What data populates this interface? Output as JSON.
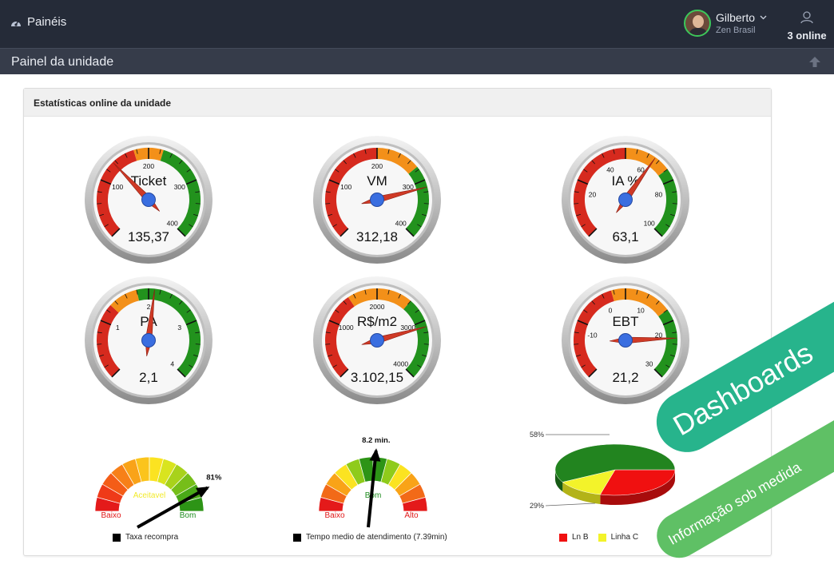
{
  "topbar": {
    "brand_label": "Painéis",
    "user": {
      "name": "Gilberto",
      "company": "Zen Brasil"
    },
    "online_label": "3 online"
  },
  "subbar": {
    "title": "Painel da unidade"
  },
  "panel": {
    "title": "Estatísticas online da unidade"
  },
  "gauges": [
    {
      "id": "ticket",
      "label": "Ticket",
      "display": "135,37",
      "value": 135.37,
      "min": 0,
      "max": 400,
      "ticks": [
        {
          "v": 100,
          "t": "100"
        },
        {
          "v": 200,
          "t": "200"
        },
        {
          "v": 300,
          "t": "300"
        },
        {
          "v": 400,
          "t": "400"
        }
      ],
      "bands": [
        {
          "from": 0,
          "to": 175,
          "color": "#d62a1e"
        },
        {
          "from": 175,
          "to": 225,
          "color": "#f39019"
        },
        {
          "from": 225,
          "to": 400,
          "color": "#22921d"
        }
      ]
    },
    {
      "id": "vm",
      "label": "VM",
      "display": "312,18",
      "value": 312.18,
      "min": 0,
      "max": 400,
      "ticks": [
        {
          "v": 100,
          "t": "100"
        },
        {
          "v": 200,
          "t": "200"
        },
        {
          "v": 300,
          "t": "300"
        },
        {
          "v": 400,
          "t": "400"
        }
      ],
      "bands": [
        {
          "from": 0,
          "to": 200,
          "color": "#d62a1e"
        },
        {
          "from": 200,
          "to": 275,
          "color": "#f39019"
        },
        {
          "from": 275,
          "to": 400,
          "color": "#22921d"
        }
      ]
    },
    {
      "id": "ia",
      "label": "IA %",
      "display": "63,1",
      "value": 63.1,
      "min": 0,
      "max": 100,
      "ticks": [
        {
          "v": 20,
          "t": "20"
        },
        {
          "v": 40,
          "t": "40"
        },
        {
          "v": 60,
          "t": "60"
        },
        {
          "v": 80,
          "t": "80"
        },
        {
          "v": 100,
          "t": "100"
        }
      ],
      "bands": [
        {
          "from": 0,
          "to": 50,
          "color": "#d62a1e"
        },
        {
          "from": 50,
          "to": 70,
          "color": "#f39019"
        },
        {
          "from": 70,
          "to": 100,
          "color": "#22921d"
        }
      ]
    },
    {
      "id": "pa",
      "label": "PA",
      "display": "2,1",
      "value": 2.1,
      "min": 0,
      "max": 4,
      "ticks": [
        {
          "v": 1,
          "t": "1"
        },
        {
          "v": 2,
          "t": "2"
        },
        {
          "v": 3,
          "t": "3"
        },
        {
          "v": 4,
          "t": "4"
        }
      ],
      "bands": [
        {
          "from": 0,
          "to": 1.3,
          "color": "#d62a1e"
        },
        {
          "from": 1.3,
          "to": 1.8,
          "color": "#f39019"
        },
        {
          "from": 1.8,
          "to": 4,
          "color": "#22921d"
        }
      ]
    },
    {
      "id": "rsm2",
      "label": "R$/m2",
      "display": "3.102,15",
      "value": 3102.15,
      "min": 0,
      "max": 4000,
      "ticks": [
        {
          "v": 1000,
          "t": "1000"
        },
        {
          "v": 2000,
          "t": "2000"
        },
        {
          "v": 3000,
          "t": "3000"
        },
        {
          "v": 4000,
          "t": "4000"
        }
      ],
      "bands": [
        {
          "from": 0,
          "to": 1500,
          "color": "#d62a1e"
        },
        {
          "from": 1500,
          "to": 2600,
          "color": "#f39019"
        },
        {
          "from": 2600,
          "to": 4000,
          "color": "#22921d"
        }
      ]
    },
    {
      "id": "ebt",
      "label": "EBT",
      "display": "21,2",
      "value": 21.2,
      "min": -20,
      "max": 30,
      "ticks": [
        {
          "v": -10,
          "t": "-10"
        },
        {
          "v": 0,
          "t": "0"
        },
        {
          "v": 10,
          "t": "10"
        },
        {
          "v": 20,
          "t": "20"
        },
        {
          "v": 30,
          "t": "30"
        }
      ],
      "bands": [
        {
          "from": -20,
          "to": 2,
          "color": "#d62a1e"
        },
        {
          "from": 2,
          "to": 15,
          "color": "#f39019"
        },
        {
          "from": 15,
          "to": 30,
          "color": "#22921d"
        }
      ]
    }
  ],
  "semi_gauges": [
    {
      "id": "taxa",
      "value_label": "81%",
      "value": 81,
      "min": 0,
      "max": 100,
      "zone_labels": [
        {
          "t": "Baixo",
          "color": "#e01818"
        },
        {
          "t": "Aceitavel",
          "color": "#f2ea2c"
        },
        {
          "t": "Bom",
          "color": "#1e8c1e"
        }
      ],
      "legend": "Taxa recompra"
    },
    {
      "id": "tempo",
      "value_label": "8.2 min.",
      "value": 8.2,
      "min": 0,
      "max": 16,
      "zone_labels": [
        {
          "t": "Baixo",
          "color": "#e01818"
        },
        {
          "t": "Bom",
          "color": "#1e8c1e"
        },
        {
          "t": "Alto",
          "color": "#e01818"
        }
      ],
      "legend": "Tempo medio de atendimento (7.39min)"
    }
  ],
  "chart_data": {
    "type": "pie",
    "slices": [
      {
        "name": "Ln B",
        "value": 29,
        "color": "#f01010"
      },
      {
        "name": "Linha C",
        "value": 13,
        "color": "#f3f32a"
      },
      {
        "name": "",
        "value": 58,
        "color": "#22841f"
      }
    ],
    "labels": [
      "58%",
      "29%"
    ],
    "legend": [
      "Ln B",
      "Linha C"
    ]
  },
  "promo": {
    "line1": "Dashboards",
    "line2": "Informação sob medida"
  }
}
